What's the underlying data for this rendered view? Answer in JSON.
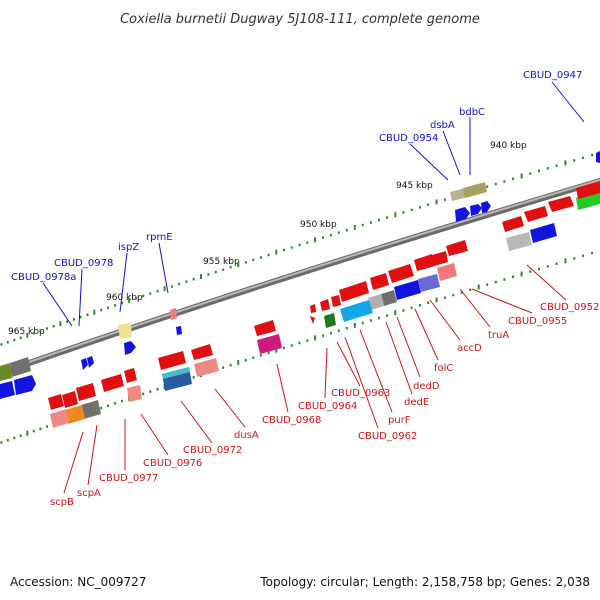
{
  "title": "Coxiella burnetii Dugway 5J108-111, complete genome",
  "footer": {
    "accession": "Accession: NC_009727",
    "summary": "Topology: circular; Length: 2,158,758 bp; Genes: 2,038"
  },
  "scale_labels": [
    "940 kbp",
    "945 kbp",
    "950 kbp",
    "955 kbp",
    "960 kbp",
    "965 kbp"
  ],
  "labels_forward": [
    "CBUD_0947",
    "bdbC",
    "dsbA",
    "CBUD_0954",
    "rpmE",
    "ispZ",
    "CBUD_0978",
    "CBUD_0978a"
  ],
  "labels_reverse": [
    "CBUD_0952",
    "CBUD_0955",
    "truA",
    "accD",
    "folC",
    "dedD",
    "dedE",
    "purF",
    "CBUD_0962",
    "CBUD_0963",
    "CBUD_0964",
    "CBUD_0968",
    "dusA",
    "CBUD_0972",
    "CBUD_0976",
    "CBUD_0977",
    "scpA",
    "scpB"
  ],
  "colors": {
    "label_forward": "#1010d8",
    "label_reverse": "#d81010",
    "backbone": "#808080",
    "tick": "#2a8a2a"
  }
}
